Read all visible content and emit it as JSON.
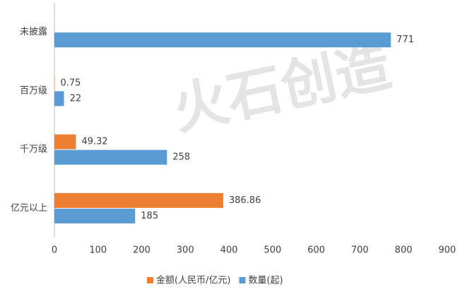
{
  "chart_data": {
    "type": "barh",
    "watermark": "火石创造",
    "categories": [
      "未披露",
      "百万级",
      "千万级",
      "亿元以上"
    ],
    "series": [
      {
        "name": "金额(人民币/亿元)",
        "color": "#ED7D31",
        "values": [
          null,
          0.75,
          49.32,
          386.86
        ]
      },
      {
        "name": "数量(起)",
        "color": "#5B9BD5",
        "values": [
          771,
          22,
          258,
          185
        ]
      }
    ],
    "xlim": [
      0,
      900
    ],
    "xticks": [
      0,
      100,
      200,
      300,
      400,
      500,
      600,
      700,
      800,
      900
    ],
    "grid": false,
    "legend": "bottom"
  }
}
